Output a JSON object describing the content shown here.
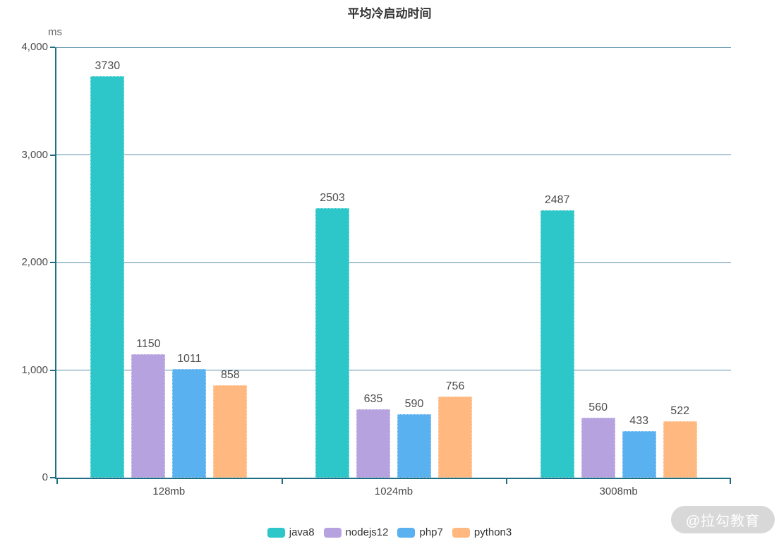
{
  "chart_data": {
    "type": "bar",
    "title": "平均冷启动时间",
    "ylabel": "ms",
    "xlabel": "",
    "ylim": [
      0,
      4000
    ],
    "ytick_labels": [
      "0",
      "1,000",
      "2,000",
      "3,000",
      "4,000"
    ],
    "categories": [
      "128mb",
      "1024mb",
      "3008mb"
    ],
    "series": [
      {
        "name": "java8",
        "color": "#2ec7c9",
        "values": [
          3730,
          2503,
          2487
        ]
      },
      {
        "name": "nodejs12",
        "color": "#b6a2de",
        "values": [
          1150,
          635,
          560
        ]
      },
      {
        "name": "php7",
        "color": "#5ab1ef",
        "values": [
          1011,
          590,
          433
        ]
      },
      {
        "name": "python3",
        "color": "#ffb980",
        "values": [
          858,
          756,
          522
        ]
      }
    ],
    "grid": true,
    "legend_position": "bottom",
    "axis_color": "#1f6e84",
    "grid_color": "#5a8fa9",
    "value_label_color": "#4d4d4d"
  },
  "watermark": {
    "text": "@拉勾教育"
  }
}
